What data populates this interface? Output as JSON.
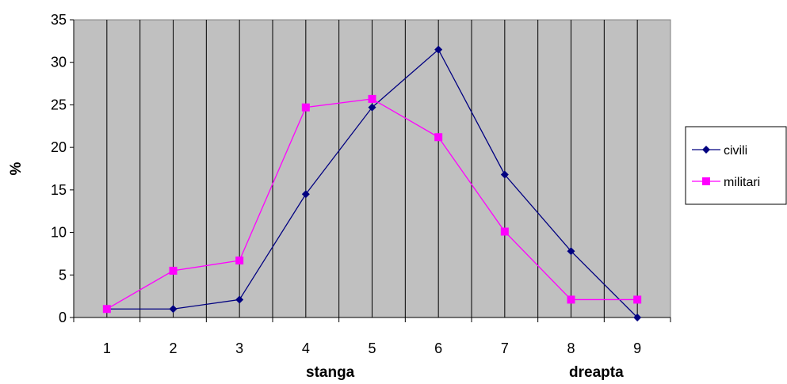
{
  "chart_data": {
    "type": "line",
    "categories": [
      "1",
      "2",
      "3",
      "4",
      "5",
      "6",
      "7",
      "8",
      "9"
    ],
    "series": [
      {
        "name": "civili",
        "color": "#000080",
        "marker": "diamond",
        "values": [
          1.0,
          1.0,
          2.1,
          14.5,
          24.7,
          31.5,
          16.8,
          7.8,
          0.0
        ]
      },
      {
        "name": "militari",
        "color": "#ff00ff",
        "marker": "square",
        "values": [
          1.0,
          5.5,
          6.7,
          24.7,
          25.7,
          21.2,
          10.1,
          2.1,
          2.1
        ]
      }
    ],
    "ylabel": "%",
    "x_annotations": [
      {
        "text": "stanga",
        "at": "4"
      },
      {
        "text": "dreapta",
        "at": "9"
      }
    ],
    "ylim": [
      0,
      35
    ],
    "yticks": [
      0,
      5,
      10,
      15,
      20,
      25,
      30,
      35
    ],
    "grid": "vertical",
    "plot_background": "#c0c0c0",
    "legend": "right"
  }
}
